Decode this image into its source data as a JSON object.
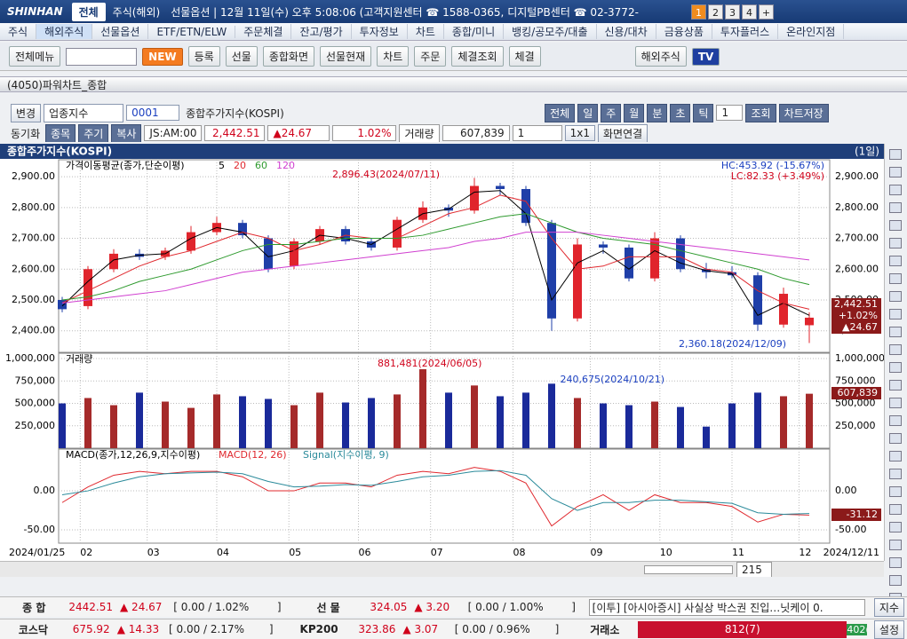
{
  "header": {
    "logo": "SHINHAN",
    "tabs": [
      "전체",
      "주식(해외)"
    ],
    "status": "선물옵션 | 12월 11일(수) 오후 5:08:06 (고객지원센터 ☎ 1588-0365, 디지털PB센터 ☎ 02-3772-",
    "screens": [
      "1",
      "2",
      "3",
      "4",
      "+"
    ]
  },
  "menu": [
    "주식",
    "해외주식",
    "선물옵션",
    "ETF/ETN/ELW",
    "주문체결",
    "잔고/평가",
    "투자정보",
    "차트",
    "종합/미니",
    "뱅킹/공모주/대출",
    "신용/대차",
    "금융상품",
    "투자플러스",
    "온라인지점"
  ],
  "toolbar": [
    "전체메뉴",
    "NEW",
    "등록",
    "선물",
    "종합화면",
    "선물현재",
    "차트",
    "주문",
    "체결조회",
    "체결",
    "해외주식",
    "TV"
  ],
  "window_title": "(4050)파워차트_종합",
  "controls": {
    "row1": {
      "change": "변경",
      "market": "업종지수",
      "code": "0001",
      "name": "종합주가지수(KOSPI)",
      "periods": [
        "전체",
        "일",
        "주",
        "월",
        "분",
        "초",
        "틱"
      ],
      "count": "1",
      "query": "조회",
      "save": "차트저장"
    },
    "row2": {
      "sync": "동기화",
      "buttons": [
        "종목",
        "주기",
        "복사"
      ],
      "time": "JS:AM:00",
      "price": "2,442.51",
      "change": "▲24.67",
      "rate": "1.02%",
      "volume_label": "거래량",
      "volume": "607,839",
      "count": "1",
      "layout": "1x1",
      "link": "화면연결"
    }
  },
  "chart_data": [
    {
      "type": "candlestick",
      "title": "종합주가지수(KOSPI)",
      "period": "(1일)",
      "legend": "가격이동평균(종가,단순이평)",
      "hc": "HC:453.92 (-15.67%)",
      "lc": "LC:82.33 (+3.49%)",
      "annotations": [
        "2,896.43(2024/07/11)",
        "2,360.18(2024/12/09)"
      ],
      "current_labels": [
        "2,442.51",
        "+1.02%",
        "▲24.67"
      ],
      "open": [
        2500,
        2480,
        2600,
        2650,
        2640,
        2660,
        2720,
        2750,
        2700,
        2610,
        2690,
        2730,
        2690,
        2670,
        2760,
        2800,
        2790,
        2870,
        2860,
        2750,
        2440,
        2680,
        2670,
        2570,
        2700,
        2600,
        2590,
        2580,
        2420,
        2418
      ],
      "high": [
        2510,
        2610,
        2665,
        2665,
        2670,
        2740,
        2770,
        2760,
        2710,
        2700,
        2740,
        2740,
        2700,
        2770,
        2820,
        2810,
        2896.43,
        2880,
        2870,
        2760,
        2700,
        2690,
        2680,
        2720,
        2710,
        2620,
        2610,
        2590,
        2540,
        2460
      ],
      "low": [
        2460,
        2470,
        2590,
        2630,
        2630,
        2650,
        2710,
        2700,
        2590,
        2600,
        2680,
        2680,
        2660,
        2660,
        2750,
        2770,
        2780,
        2840,
        2740,
        2400,
        2430,
        2650,
        2560,
        2560,
        2590,
        2570,
        2570,
        2400,
        2410,
        2360.18
      ],
      "close": [
        2470,
        2600,
        2650,
        2640,
        2660,
        2720,
        2750,
        2710,
        2600,
        2690,
        2730,
        2690,
        2670,
        2760,
        2800,
        2790,
        2870,
        2860,
        2750,
        2440,
        2680,
        2670,
        2570,
        2700,
        2600,
        2590,
        2580,
        2420,
        2520,
        2442.51
      ],
      "up_color": "#e0242c",
      "down_color": "#1f3fa8",
      "series": [
        {
          "name": "5",
          "color": "#000000",
          "values": [
            2480,
            2560,
            2630,
            2645,
            2650,
            2700,
            2735,
            2720,
            2640,
            2660,
            2710,
            2700,
            2680,
            2730,
            2780,
            2795,
            2850,
            2855,
            2780,
            2500,
            2620,
            2660,
            2600,
            2660,
            2620,
            2595,
            2585,
            2450,
            2490,
            2450
          ]
        },
        {
          "name": "20",
          "color": "#e0282e",
          "values": [
            2490,
            2530,
            2570,
            2610,
            2640,
            2660,
            2690,
            2720,
            2700,
            2660,
            2680,
            2710,
            2700,
            2700,
            2740,
            2780,
            2800,
            2840,
            2820,
            2700,
            2600,
            2610,
            2640,
            2640,
            2640,
            2600,
            2590,
            2530,
            2490,
            2470
          ]
        },
        {
          "name": "60",
          "color": "#2e9a2e",
          "values": [
            2500,
            2510,
            2530,
            2560,
            2580,
            2600,
            2630,
            2660,
            2680,
            2680,
            2690,
            2700,
            2700,
            2700,
            2710,
            2730,
            2750,
            2770,
            2780,
            2750,
            2720,
            2700,
            2690,
            2680,
            2660,
            2640,
            2620,
            2600,
            2570,
            2550
          ]
        },
        {
          "name": "120",
          "color": "#d040d0",
          "values": [
            2490,
            2500,
            2510,
            2520,
            2530,
            2550,
            2570,
            2590,
            2600,
            2610,
            2620,
            2630,
            2640,
            2650,
            2660,
            2670,
            2690,
            2700,
            2720,
            2720,
            2720,
            2710,
            2700,
            2690,
            2680,
            2670,
            2660,
            2650,
            2640,
            2630
          ]
        }
      ],
      "ylim": [
        2330,
        2955
      ],
      "yticks": [
        {
          "value": 2400,
          "label": "2,400.00"
        },
        {
          "value": 2500,
          "label": "2,500.00"
        },
        {
          "value": 2600,
          "label": "2,600.00"
        },
        {
          "value": 2700,
          "label": "2,700.00"
        },
        {
          "value": 2800,
          "label": "2,800.00"
        },
        {
          "value": 2900,
          "label": "2,900.00"
        }
      ],
      "grid": true
    },
    {
      "type": "bar",
      "legend": "거래량",
      "annotations": [
        "881,481(2024/06/05)",
        "240,675(2024/10/21)"
      ],
      "current_label": "607,839",
      "up_color": "#a52a2a",
      "down_color": "#1a2a9a",
      "values": [
        500000,
        560000,
        480000,
        620000,
        520000,
        450000,
        600000,
        580000,
        550000,
        480000,
        620000,
        510000,
        560000,
        600000,
        881481,
        620000,
        700000,
        580000,
        620000,
        720000,
        560000,
        500000,
        480000,
        520000,
        460000,
        240675,
        500000,
        620000,
        580000,
        607839
      ],
      "ylim": [
        0,
        1060000
      ],
      "yticks": [
        {
          "value": 250000,
          "label": "250,000"
        },
        {
          "value": 500000,
          "label": "500,000"
        },
        {
          "value": 750000,
          "label": "750,000"
        },
        {
          "value": 1000000,
          "label": "1,000,000"
        }
      ],
      "grid": true
    },
    {
      "type": "line",
      "legend": "MACD(종가,12,26,9,지수이평)",
      "current_label": "-31.12",
      "series": [
        {
          "name": "MACD(12, 26)",
          "color": "#e0282e",
          "values": [
            -15,
            5,
            20,
            25,
            22,
            25,
            25,
            18,
            0,
            0,
            10,
            10,
            5,
            20,
            25,
            22,
            30,
            25,
            10,
            -45,
            -20,
            -5,
            -25,
            -5,
            -15,
            -15,
            -20,
            -40,
            -30,
            -31.12
          ]
        },
        {
          "name": "Signal(지수이평, 9)",
          "color": "#2a8a9a",
          "values": [
            -5,
            0,
            10,
            18,
            22,
            23,
            24,
            22,
            12,
            5,
            6,
            8,
            7,
            12,
            18,
            20,
            25,
            26,
            20,
            -10,
            -25,
            -15,
            -15,
            -12,
            -12,
            -14,
            -16,
            -28,
            -30,
            -29
          ]
        }
      ],
      "ylim": [
        -67,
        53.5
      ],
      "yticks": [
        {
          "value": -50,
          "label": "-50.00"
        },
        {
          "value": 0,
          "label": "0.00"
        }
      ],
      "grid": true,
      "start_label": "2024/01/25",
      "end_label": "2024/12/11",
      "xticks": [
        {
          "value": 0.7,
          "label": "02"
        },
        {
          "value": 3.3,
          "label": "03"
        },
        {
          "value": 6,
          "label": "04"
        },
        {
          "value": 8.8,
          "label": "05"
        },
        {
          "value": 11.5,
          "label": "06"
        },
        {
          "value": 14.3,
          "label": "07"
        },
        {
          "value": 17.5,
          "label": "08"
        },
        {
          "value": 20.5,
          "label": "09"
        },
        {
          "value": 23.2,
          "label": "10"
        },
        {
          "value": 26,
          "label": "11"
        },
        {
          "value": 28.6,
          "label": "12"
        }
      ]
    }
  ],
  "scroll": "215",
  "ticker": {
    "row1": {
      "label": "종 합",
      "value": "2442.51",
      "change": "▲ 24.67",
      "range": "[ 0.00 / 1.02%",
      "close": "]",
      "label2": "선 물",
      "value2": "324.05",
      "change2": "▲ 3.20",
      "range2": "[ 0.00 / 1.00%",
      "close2": "]",
      "news": "[이투] [아시아증시] 사실상 박스권 진입…닛케이 0.",
      "button": "지수"
    },
    "row2": {
      "label": "코스닥",
      "value": "675.92",
      "change": "▲ 14.33",
      "range": "[ 0.00 / 2.17%",
      "close": "]",
      "label2": "KP200",
      "value2": "323.86",
      "change2": "▲ 3.07",
      "range2": "[ 0.00 / 0.96%",
      "close2": "]",
      "label3": "거래소",
      "bar": "812(7)",
      "bar2": "402(0",
      "button": "설정"
    }
  }
}
